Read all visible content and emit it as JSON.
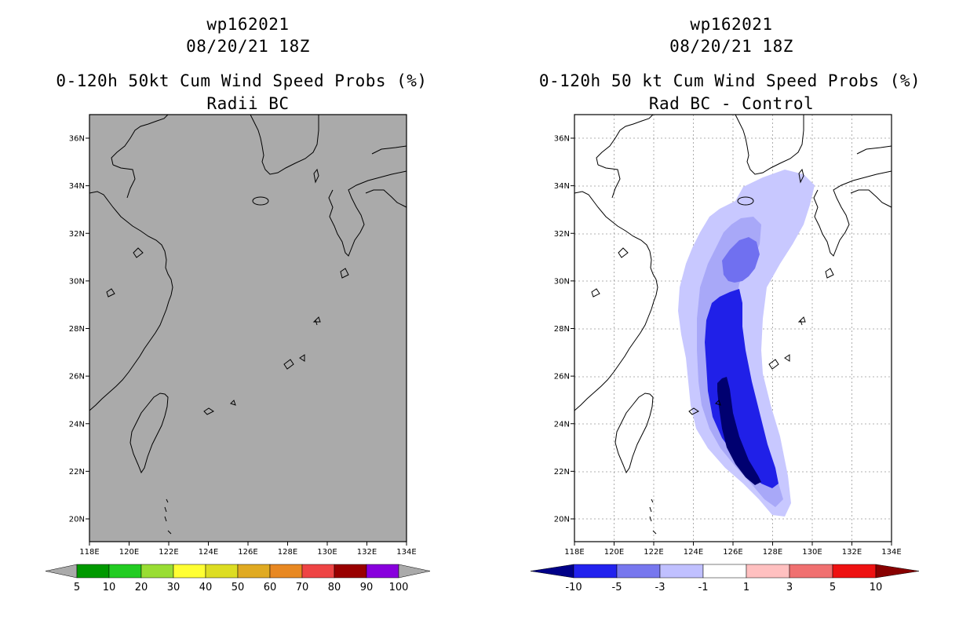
{
  "left_panel": {
    "title_lines": [
      "wp162021",
      "08/20/21 18Z",
      "0-120h 50kt Cum Wind Speed Probs (%)",
      "Radii BC"
    ],
    "lat_labels": [
      "36N",
      "34N",
      "32N",
      "30N",
      "28N",
      "26N",
      "24N",
      "22N",
      "20N"
    ],
    "lon_labels": [
      "118E",
      "120E",
      "122E",
      "124E",
      "126E",
      "128E",
      "130E",
      "132E",
      "134E"
    ],
    "colorbar": {
      "colors": [
        "#009900",
        "#22cc22",
        "#99dd33",
        "#ffff33",
        "#dddd22",
        "#e0aa22",
        "#e88822",
        "#ee4444",
        "#990000",
        "#8800dd"
      ],
      "labels": [
        "5",
        "10",
        "20",
        "30",
        "40",
        "50",
        "60",
        "70",
        "80",
        "90",
        "100"
      ]
    },
    "background_color": "#aaaaaa"
  },
  "right_panel": {
    "title_lines": [
      "wp162021",
      "08/20/21 18Z",
      "0-120h 50 kt Cum Wind Speed Probs (%)",
      "Rad BC - Control"
    ],
    "lat_labels": [
      "36N",
      "34N",
      "32N",
      "30N",
      "28N",
      "26N",
      "24N",
      "22N",
      "20N"
    ],
    "lon_labels": [
      "118E",
      "120E",
      "122E",
      "124E",
      "126E",
      "128E",
      "130E",
      "132E",
      "134E"
    ],
    "colorbar": {
      "colors": [
        "#000088",
        "#2222ee",
        "#7777ee",
        "#c0c0ff",
        "#ffffff",
        "#ffc0c0",
        "#f07070",
        "#ee1111",
        "#880000"
      ],
      "labels": [
        "-10",
        "-5",
        "-3",
        "-1",
        "1",
        "3",
        "5",
        "10"
      ]
    },
    "contour_colors": [
      "#c8c8ff",
      "#a8a8f8",
      "#7070f0",
      "#2020e8",
      "#000070"
    ]
  }
}
